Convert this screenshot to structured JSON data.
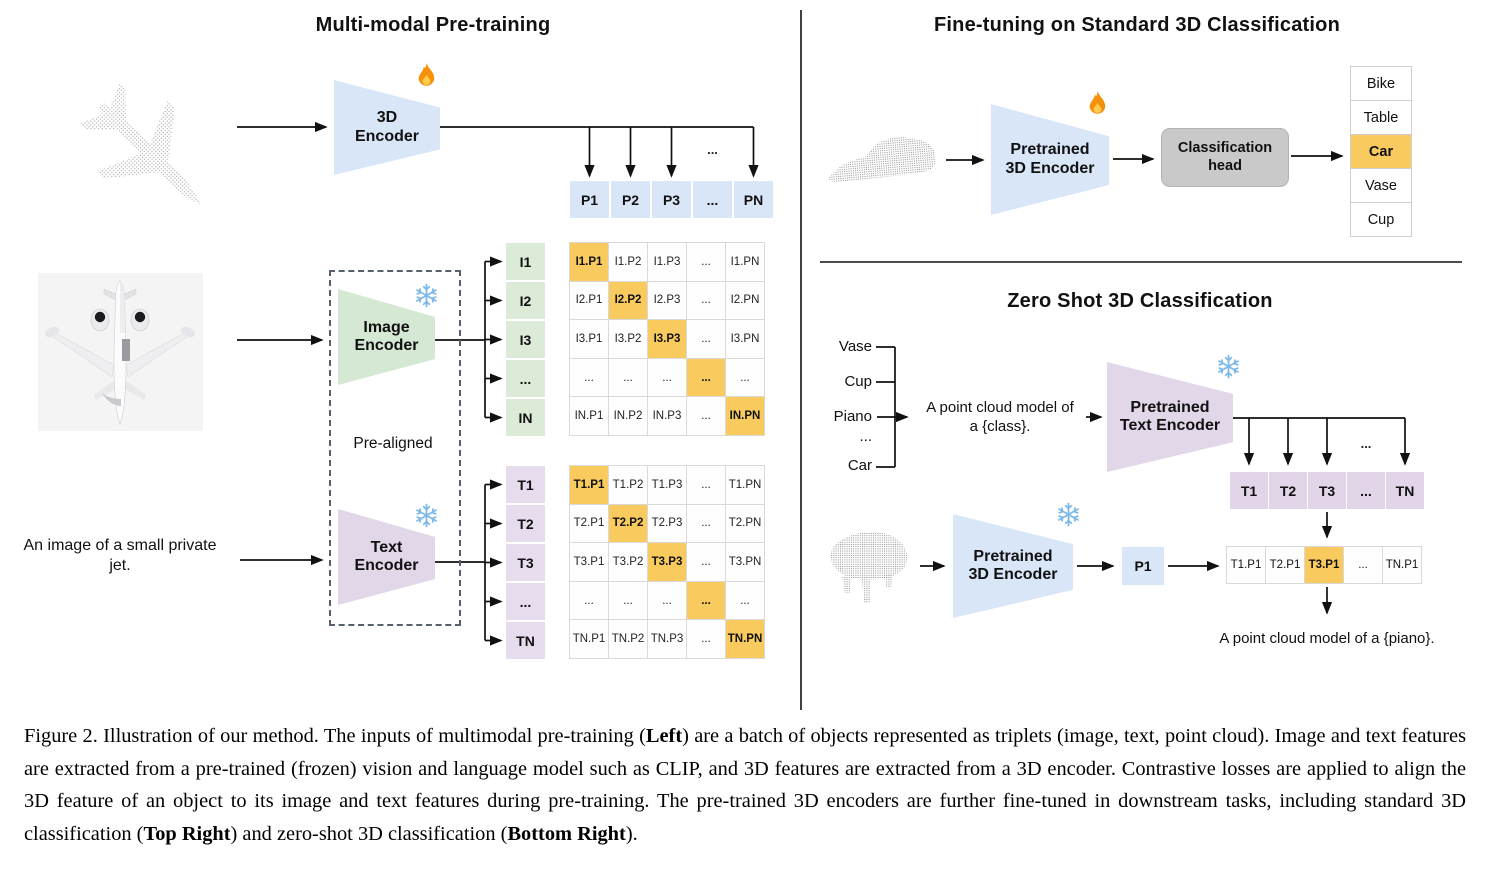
{
  "figure": {
    "ellipsis": "...",
    "colors": {
      "encoder_blue": "#d8e6f8",
      "encoder_green": "#d5e8d4",
      "encoder_purple": "#e2d6e9",
      "highlight_orange": "#f9cb5f",
      "head_gray": "#c9c9c9"
    },
    "icons": {
      "trainable": "flame-icon",
      "frozen": "snowflake-icon"
    },
    "left": {
      "title": "Multi-modal Pre-training",
      "encoder_3d_label": "3D Encoder",
      "image_encoder_label": "Image Encoder",
      "text_encoder_label": "Text Encoder",
      "pre_aligned_label": "Pre-aligned",
      "input_text": "An image of a small private jet.",
      "p_row": [
        "P1",
        "P2",
        "P3",
        "...",
        "PN"
      ],
      "i_labels": [
        "I1",
        "I2",
        "I3",
        "...",
        "IN"
      ],
      "t_labels": [
        "T1",
        "T2",
        "T3",
        "...",
        "TN"
      ],
      "i_matrix": [
        [
          {
            "t": "I1.P1",
            "hl": true
          },
          {
            "t": "I1.P2"
          },
          {
            "t": "I1.P3"
          },
          {
            "t": "..."
          },
          {
            "t": "I1.PN"
          }
        ],
        [
          {
            "t": "I2.P1"
          },
          {
            "t": "I2.P2",
            "hl": true
          },
          {
            "t": "I2.P3"
          },
          {
            "t": "..."
          },
          {
            "t": "I2.PN"
          }
        ],
        [
          {
            "t": "I3.P1"
          },
          {
            "t": "I3.P2"
          },
          {
            "t": "I3.P3",
            "hl": true
          },
          {
            "t": "..."
          },
          {
            "t": "I3.PN"
          }
        ],
        [
          {
            "t": "..."
          },
          {
            "t": "..."
          },
          {
            "t": "..."
          },
          {
            "t": "...",
            "hl": true
          },
          {
            "t": "..."
          }
        ],
        [
          {
            "t": "IN.P1"
          },
          {
            "t": "IN.P2"
          },
          {
            "t": "IN.P3"
          },
          {
            "t": "..."
          },
          {
            "t": "IN.PN",
            "hl": true
          }
        ]
      ],
      "t_matrix": [
        [
          {
            "t": "T1.P1",
            "hl": true
          },
          {
            "t": "T1.P2"
          },
          {
            "t": "T1.P3"
          },
          {
            "t": "..."
          },
          {
            "t": "T1.PN"
          }
        ],
        [
          {
            "t": "T2.P1"
          },
          {
            "t": "T2.P2",
            "hl": true
          },
          {
            "t": "T2.P3"
          },
          {
            "t": "..."
          },
          {
            "t": "T2.PN"
          }
        ],
        [
          {
            "t": "T3.P1"
          },
          {
            "t": "T3.P2"
          },
          {
            "t": "T3.P3",
            "hl": true
          },
          {
            "t": "..."
          },
          {
            "t": "T3.PN"
          }
        ],
        [
          {
            "t": "..."
          },
          {
            "t": "..."
          },
          {
            "t": "..."
          },
          {
            "t": "...",
            "hl": true
          },
          {
            "t": "..."
          }
        ],
        [
          {
            "t": "TN.P1"
          },
          {
            "t": "TN.P2"
          },
          {
            "t": "TN.P3"
          },
          {
            "t": "..."
          },
          {
            "t": "TN.PN",
            "hl": true
          }
        ]
      ]
    },
    "top_right": {
      "title": "Fine-tuning on Standard 3D Classification",
      "encoder_label": "Pretrained 3D Encoder",
      "classification_head_label": "Classification head",
      "classes": [
        {
          "t": "Bike"
        },
        {
          "t": "Table"
        },
        {
          "t": "Car",
          "hl": true
        },
        {
          "t": "Vase"
        },
        {
          "t": "Cup"
        }
      ]
    },
    "bottom_right": {
      "title": "Zero Shot 3D Classification",
      "class_prompts": [
        "Vase",
        "Cup",
        "Piano",
        "...",
        "Car"
      ],
      "prompt_line1": "A point cloud model of",
      "prompt_line2": "a {class}.",
      "text_encoder_label": "Pretrained Text Encoder",
      "encoder_3d_label": "Pretrained 3D Encoder",
      "t_row": [
        "T1",
        "T2",
        "T3",
        "...",
        "TN"
      ],
      "p1_label": "P1",
      "sim_row": [
        {
          "t": "T1.P1"
        },
        {
          "t": "T2.P1"
        },
        {
          "t": "T3.P1",
          "hl": true
        },
        {
          "t": "..."
        },
        {
          "t": "TN.P1"
        }
      ],
      "result_text": "A point cloud model of a {piano}."
    }
  },
  "caption": {
    "segments": [
      {
        "text": "Figure 2. Illustration of our method. The inputs of multimodal pre-training ("
      },
      {
        "text": "Left",
        "bold": true
      },
      {
        "text": ") are a batch of objects represented as triplets (image, text, point cloud). Image and text features are extracted from a pre-trained (frozen) vision and language model such as CLIP, and 3D features are extracted from a 3D encoder. Contrastive losses are applied to align the 3D feature of an object to its image and text features during pre-training. The pre-trained 3D encoders are further fine-tuned in downstream tasks, including standard 3D classification ("
      },
      {
        "text": "Top Right",
        "bold": true
      },
      {
        "text": ") and zero-shot 3D classification ("
      },
      {
        "text": "Bottom Right",
        "bold": true
      },
      {
        "text": ")."
      }
    ]
  }
}
